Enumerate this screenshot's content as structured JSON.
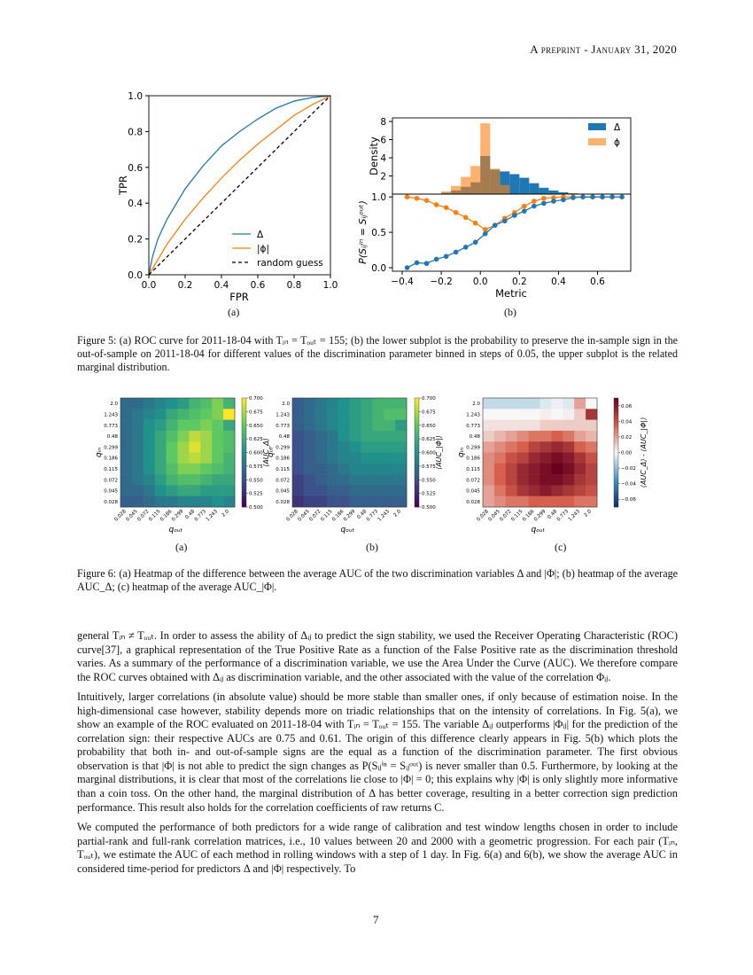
{
  "header": "A preprint - January 31, 2020",
  "figure5": {
    "a_label": "(a)",
    "b_label": "(b)",
    "caption": "Figure 5: (a) ROC curve for 2011-18-04 with Tᵢₙ = Tₒᵤₜ = 155; (b) the lower subplot is the probability to preserve the in-sample sign in the out-of-sample on 2011-18-04 for different values of the discrimination parameter binned in steps of 0.05, the upper subplot is the related marginal distribution."
  },
  "figure6": {
    "a_label": "(a)",
    "b_label": "(b)",
    "c_label": "(c)",
    "caption": "Figure 6: (a) Heatmap of the difference between the average AUC of the two discrimination variables Δ and |Φ|; (b) heatmap of the average AUC_Δ; (c) heatmap of the average AUC_|Φ|."
  },
  "body": [
    "general Tᵢₙ ≠ Tₒᵤₜ. In order to assess the ability of Δᵢⱼ to predict the sign stability, we used the Receiver Operating Characteristic (ROC) curve[37], a graphical representation of the True Positive Rate as a function of the False Positive rate as the discrimination threshold varies. As a summary of the performance of a discrimination variable, we use the Area Under the Curve (AUC). We therefore compare the ROC curves obtained with Δᵢⱼ as discrimination variable, and the other associated with the value of the correlation Φᵢⱼ.",
    "Intuitively, larger correlations (in absolute value) should be more stable than smaller ones, if only because of estimation noise. In the high-dimensional case however, stability depends more on triadic relationships that on the intensity of correlations. In Fig. 5(a), we show an example of the ROC evaluated on 2011-18-04 with Tᵢₙ = Tₒᵤₜ = 155. The variable Δᵢⱼ outperforms |Φᵢⱼ| for the prediction of the correlation sign: their respective AUCs are 0.75 and 0.61. The origin of this difference clearly appears in Fig. 5(b) which plots the probability that both in- and out-of-sample signs are the equal as a function of the discrimination parameter. The first obvious observation is that |Φ| is not able to predict the sign changes as P(Sᵢⱼⁱⁿ = Sᵢⱼᵒᵘᵗ) is never smaller than 0.5. Furthermore, by looking at the marginal distributions, it is clear that most of the correlations lie close to |Φ| = 0; this explains why |Φ| is only slightly more informative than a coin toss. On the other hand, the marginal distribution of Δ has better coverage, resulting in a better correction sign prediction performance. This result also holds for the correlation coefficients of raw returns C.",
    "We computed the performance of both predictors for a wide range of calibration and test window lengths chosen in order to include partial-rank and full-rank correlation matrices, i.e., 10 values between 20 and 2000 with a geometric progression. For each pair (Tᵢₙ, Tₒᵤₜ), we estimate the AUC of each method in rolling windows with a step of 1 day. In Fig. 6(a) and 6(b), we show the average AUC in considered time-period for predictors Δ and |Φ| respectively. To"
  ],
  "page_number": "7",
  "colors": {
    "blue": "#1f77b4",
    "orange": "#ff7f0e"
  },
  "chart_data": [
    {
      "id": "roc",
      "type": "line",
      "xlabel": "FPR",
      "ylabel": "TPR",
      "xlim": [
        0,
        1
      ],
      "ylim": [
        0,
        1
      ],
      "xticks": [
        "0.0",
        "0.2",
        "0.4",
        "0.6",
        "0.8",
        "1.0"
      ],
      "yticks": [
        "0.0",
        "0.2",
        "0.4",
        "0.6",
        "0.8",
        "1.0"
      ],
      "legend_position": "lower-right",
      "series": [
        {
          "name": "Δ",
          "color": "#1f77b4",
          "x": [
            0,
            0.02,
            0.05,
            0.1,
            0.2,
            0.3,
            0.4,
            0.5,
            0.6,
            0.7,
            0.8,
            0.9,
            1
          ],
          "y": [
            0,
            0.1,
            0.2,
            0.31,
            0.48,
            0.61,
            0.72,
            0.8,
            0.87,
            0.93,
            0.97,
            0.99,
            1
          ]
        },
        {
          "name": "|ϕ|",
          "color": "#ff7f0e",
          "x": [
            0,
            0.1,
            0.2,
            0.3,
            0.4,
            0.5,
            0.6,
            0.7,
            0.8,
            0.9,
            1
          ],
          "y": [
            0,
            0.17,
            0.31,
            0.43,
            0.54,
            0.64,
            0.73,
            0.81,
            0.89,
            0.95,
            1
          ]
        },
        {
          "name": "random guess",
          "color": "#000000",
          "dashed": true,
          "x": [
            0,
            1
          ],
          "y": [
            0,
            1
          ]
        }
      ]
    },
    {
      "id": "density",
      "type": "bar",
      "ylabel": "Density",
      "xlim": [
        -0.45,
        0.77
      ],
      "ylim": [
        0,
        8.3
      ],
      "yticks": [
        "2",
        "4",
        "6",
        "8"
      ],
      "bin_width": 0.05,
      "legend_position": "upper-right",
      "series": [
        {
          "name": "Δ",
          "color": "#1f77b4",
          "bin_left": [
            -0.25,
            -0.2,
            -0.15,
            -0.1,
            -0.05,
            0,
            0.05,
            0.1,
            0.15,
            0.2,
            0.25,
            0.3,
            0.35,
            0.4,
            0.45
          ],
          "values": [
            0.05,
            0.15,
            0.4,
            0.8,
            1.3,
            4.2,
            2.7,
            2.5,
            2.2,
            1.8,
            1.2,
            0.7,
            0.4,
            0.2,
            0.08
          ]
        },
        {
          "name": "ϕ",
          "color": "#ff7f0e",
          "bin_left": [
            -0.25,
            -0.2,
            -0.15,
            -0.1,
            -0.05,
            0,
            0.05,
            0.1
          ],
          "values": [
            0.05,
            0.3,
            0.9,
            1.9,
            3.1,
            7.8,
            2.8,
            1.0
          ]
        }
      ]
    },
    {
      "id": "prob",
      "type": "line",
      "xlabel": "Metric",
      "ylabel": "P(Sᵢⱼⁱⁿ = Sᵢⱼᵒᵘᵗ)",
      "xlim": [
        -0.45,
        0.77
      ],
      "ylim": [
        -0.05,
        1.04
      ],
      "xticks": [
        "−0.4",
        "−0.2",
        "0.0",
        "0.2",
        "0.4",
        "0.6"
      ],
      "yticks": [
        "0.0",
        "0.5",
        "1.0"
      ],
      "series": [
        {
          "name": "Δ",
          "color": "#1f77b4",
          "x_start": -0.375,
          "step": 0.05,
          "y": [
            0,
            0.07,
            0.06,
            0.12,
            0.16,
            0.22,
            0.29,
            0.36,
            0.48,
            0.6,
            0.66,
            0.74,
            0.8,
            0.87,
            0.91,
            0.94,
            0.96,
            0.99,
            1,
            1,
            1,
            1,
            1
          ]
        },
        {
          "name": "ϕ",
          "color": "#ff7f0e",
          "x_start": -0.375,
          "step": 0.05,
          "y": [
            1,
            0.98,
            0.95,
            0.89,
            0.85,
            0.78,
            0.71,
            0.63,
            0.54,
            0.6,
            0.7,
            0.78,
            0.87,
            0.94,
            0.98,
            0.99,
            1,
            1,
            1,
            1,
            1
          ]
        }
      ]
    },
    {
      "id": "heat_a",
      "type": "heatmap",
      "xlabel": "qₒᵤₜ",
      "ylabel": "qᵢₙ",
      "colorbar_label": "⟨AUC_Δ⟩",
      "colormap": "viridis",
      "vlim": [
        0.5,
        0.7
      ],
      "cbar_ticks": [
        "0.500",
        "0.525",
        "0.550",
        "0.575",
        "0.600",
        "0.625",
        "0.650",
        "0.675",
        "0.700"
      ],
      "x_categories": [
        "0.028",
        "0.045",
        "0.072",
        "0.115",
        "0.186",
        "0.299",
        "0.48",
        "0.773",
        "1.243",
        "2.0"
      ],
      "y_categories": [
        "2.0",
        "1.243",
        "0.773",
        "0.48",
        "0.299",
        "0.186",
        "0.115",
        "0.072",
        "0.045",
        "0.028"
      ],
      "values": [
        [
          0.57,
          0.57,
          0.58,
          0.59,
          0.6,
          0.61,
          0.63,
          0.64,
          0.66,
          0.63
        ],
        [
          0.57,
          0.58,
          0.59,
          0.6,
          0.62,
          0.63,
          0.64,
          0.65,
          0.66,
          0.7
        ],
        [
          0.57,
          0.58,
          0.6,
          0.61,
          0.63,
          0.65,
          0.65,
          0.66,
          0.65,
          0.62
        ],
        [
          0.57,
          0.58,
          0.6,
          0.62,
          0.64,
          0.66,
          0.68,
          0.67,
          0.65,
          0.64
        ],
        [
          0.57,
          0.58,
          0.6,
          0.62,
          0.65,
          0.67,
          0.69,
          0.67,
          0.65,
          0.64
        ],
        [
          0.57,
          0.58,
          0.6,
          0.62,
          0.65,
          0.67,
          0.68,
          0.67,
          0.65,
          0.63
        ],
        [
          0.57,
          0.58,
          0.6,
          0.62,
          0.64,
          0.66,
          0.66,
          0.65,
          0.64,
          0.63
        ],
        [
          0.57,
          0.58,
          0.59,
          0.61,
          0.63,
          0.64,
          0.64,
          0.63,
          0.62,
          0.62
        ],
        [
          0.57,
          0.57,
          0.58,
          0.6,
          0.61,
          0.62,
          0.62,
          0.61,
          0.61,
          0.61
        ],
        [
          0.56,
          0.56,
          0.57,
          0.58,
          0.58,
          0.59,
          0.59,
          0.59,
          0.6,
          0.59
        ]
      ]
    },
    {
      "id": "heat_b",
      "type": "heatmap",
      "xlabel": "qₒᵤₜ",
      "ylabel": "qᵢₙ",
      "colorbar_label": "⟨AUC_|Φ|⟩",
      "colormap": "viridis",
      "vlim": [
        0.5,
        0.7
      ],
      "cbar_ticks": [
        "0.500",
        "0.525",
        "0.550",
        "0.575",
        "0.600",
        "0.625",
        "0.650",
        "0.675",
        "0.700"
      ],
      "x_categories": [
        "0.028",
        "0.045",
        "0.072",
        "0.115",
        "0.186",
        "0.299",
        "0.48",
        "0.773",
        "1.243",
        "2.0"
      ],
      "y_categories": [
        "2.0",
        "1.243",
        "0.773",
        "0.48",
        "0.299",
        "0.186",
        "0.115",
        "0.072",
        "0.045",
        "0.028"
      ],
      "values": [
        [
          0.56,
          0.57,
          0.58,
          0.59,
          0.6,
          0.61,
          0.62,
          0.63,
          0.63,
          0.63
        ],
        [
          0.56,
          0.57,
          0.58,
          0.59,
          0.6,
          0.61,
          0.62,
          0.63,
          0.64,
          0.64
        ],
        [
          0.56,
          0.57,
          0.58,
          0.59,
          0.6,
          0.61,
          0.62,
          0.63,
          0.63,
          0.61
        ],
        [
          0.55,
          0.56,
          0.57,
          0.58,
          0.6,
          0.61,
          0.62,
          0.62,
          0.62,
          0.62
        ],
        [
          0.55,
          0.56,
          0.57,
          0.58,
          0.59,
          0.6,
          0.61,
          0.61,
          0.61,
          0.61
        ],
        [
          0.55,
          0.56,
          0.57,
          0.58,
          0.59,
          0.59,
          0.6,
          0.6,
          0.6,
          0.6
        ],
        [
          0.55,
          0.56,
          0.56,
          0.57,
          0.58,
          0.59,
          0.59,
          0.59,
          0.59,
          0.59
        ],
        [
          0.54,
          0.55,
          0.56,
          0.57,
          0.57,
          0.58,
          0.58,
          0.58,
          0.58,
          0.58
        ],
        [
          0.54,
          0.55,
          0.55,
          0.56,
          0.56,
          0.57,
          0.57,
          0.57,
          0.57,
          0.57
        ],
        [
          0.53,
          0.54,
          0.54,
          0.55,
          0.55,
          0.56,
          0.56,
          0.56,
          0.56,
          0.56
        ]
      ]
    },
    {
      "id": "heat_c",
      "type": "heatmap",
      "xlabel": "qₒᵤₜ",
      "ylabel": "qᵢₙ",
      "colorbar_label": "⟨AUC_Δ⟩ - ⟨AUC_|Φ|⟩",
      "colormap": "RdBu_r",
      "vlim": [
        -0.07,
        0.07
      ],
      "cbar_ticks": [
        "−0.06",
        "−0.04",
        "−0.02",
        "0.00",
        "0.02",
        "0.04",
        "0.06"
      ],
      "x_categories": [
        "0.028",
        "0.045",
        "0.072",
        "0.115",
        "0.186",
        "0.299",
        "0.48",
        "0.773",
        "1.243",
        "2.0"
      ],
      "y_categories": [
        "2.0",
        "1.243",
        "0.773",
        "0.48",
        "0.299",
        "0.186",
        "0.115",
        "0.072",
        "0.045",
        "0.028"
      ],
      "values": [
        [
          -0.01,
          -0.01,
          -0.01,
          -0.01,
          -0.01,
          -0.005,
          -0.002,
          -0.005,
          0.02,
          0
        ],
        [
          0,
          0,
          0,
          0,
          0,
          0.002,
          0,
          0.002,
          0.01,
          0.05
        ],
        [
          0.005,
          0.005,
          0.005,
          0.005,
          0.005,
          0.01,
          0.01,
          0.01,
          0.01,
          0.01
        ],
        [
          0.01,
          0.015,
          0.02,
          0.025,
          0.03,
          0.03,
          0.035,
          0.03,
          0.02,
          0.015
        ],
        [
          0.02,
          0.025,
          0.03,
          0.035,
          0.045,
          0.05,
          0.055,
          0.05,
          0.035,
          0.03
        ],
        [
          0.025,
          0.03,
          0.04,
          0.045,
          0.055,
          0.06,
          0.065,
          0.06,
          0.05,
          0.04
        ],
        [
          0.025,
          0.035,
          0.045,
          0.055,
          0.06,
          0.065,
          0.07,
          0.065,
          0.055,
          0.045
        ],
        [
          0.025,
          0.035,
          0.045,
          0.055,
          0.06,
          0.065,
          0.065,
          0.06,
          0.05,
          0.045
        ],
        [
          0.02,
          0.03,
          0.04,
          0.05,
          0.055,
          0.06,
          0.055,
          0.05,
          0.045,
          0.04
        ],
        [
          0.02,
          0.025,
          0.03,
          0.03,
          0.035,
          0.035,
          0.035,
          0.035,
          0.03,
          0.03
        ]
      ]
    }
  ]
}
